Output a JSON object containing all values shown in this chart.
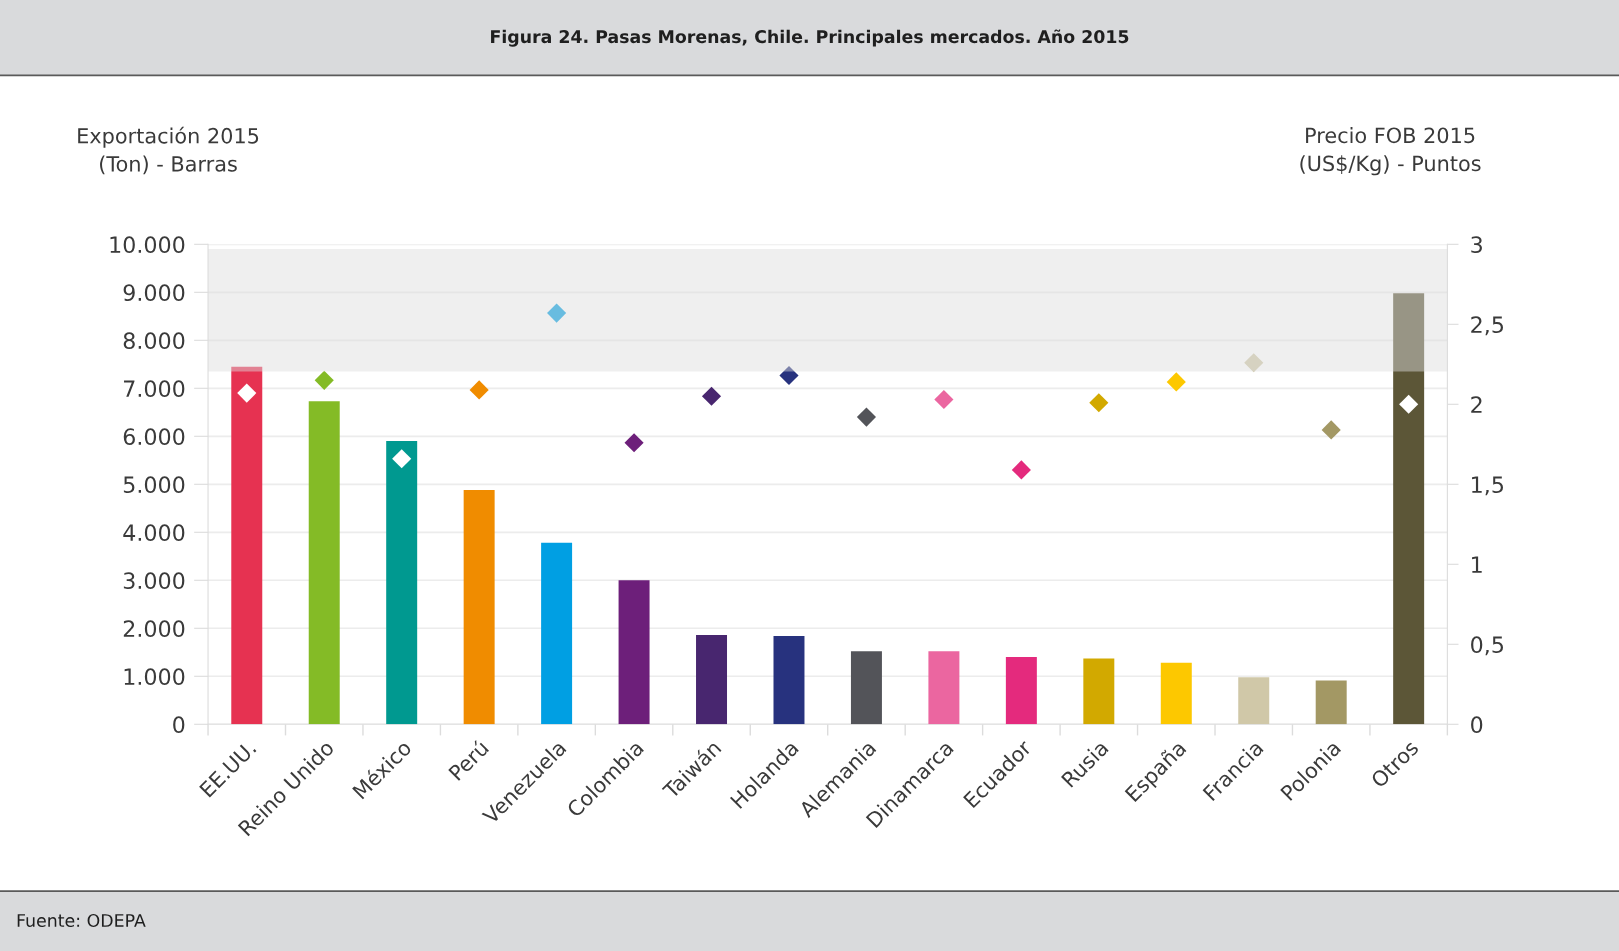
{
  "chart_data": {
    "type": "bar",
    "title": "Figura 24. Pasas Morenas, Chile. Principales mercados. Año 2015",
    "ylabel": "Exportación 2015\n(Ton) - Barras",
    "y2label": "Precio FOB 2015\n(US$/Kg) - Puntos",
    "annotations": [
      "Fuente: ODEPA"
    ],
    "categories": [
      "EE.UU.",
      "Reino Unido",
      "México",
      "Perú",
      "Venezuela",
      "Colombia",
      "Taiwán",
      "Holanda",
      "Alemania",
      "Dinamarca",
      "Ecuador",
      "Rusia",
      "España",
      "Francia",
      "Polonia",
      "Otros"
    ],
    "series": [
      {
        "colors": [
          "#e63251",
          "#84bb26",
          "#009990",
          "#f08c00",
          "#009fe3",
          "#6d1f7a",
          "#48266f",
          "#27327e",
          "#535459",
          "#eb66a0",
          "#e42a7d",
          "#d2a900",
          "#fdc800",
          "#d0c8a8",
          "#a39864",
          "#5c5637"
        ],
        "values": [
          7450,
          6730,
          5900,
          4880,
          3780,
          3000,
          1860,
          1840,
          1520,
          1520,
          1400,
          1370,
          1280,
          980,
          910,
          8980
        ]
      },
      {
        "type": "scatter",
        "axis": "y2",
        "colors": [
          "#ffffff",
          "#84bb26",
          "#ffffff",
          "#f08c00",
          "#009fe3",
          "#6d1f7a",
          "#48266f",
          "#27327e",
          "#535459",
          "#eb66a0",
          "#e42a7d",
          "#d2a900",
          "#fdc800",
          "#d0c8a8",
          "#a39864",
          "#ffffff"
        ],
        "values": [
          2.07,
          2.15,
          1.66,
          2.09,
          2.57,
          1.76,
          2.05,
          2.18,
          1.92,
          2.03,
          1.59,
          2.01,
          2.14,
          2.26,
          1.84,
          2.0
        ]
      }
    ],
    "marker": "diamond",
    "ylim": [
      0,
      10000
    ],
    "yticks": [
      0,
      {
        "value": 1000,
        "label": "1.000"
      },
      {
        "value": 2000,
        "label": "2.000"
      },
      {
        "value": 3000,
        "label": "3.000"
      },
      {
        "value": 4000,
        "label": "4.000"
      },
      {
        "value": 5000,
        "label": "5.000"
      },
      {
        "value": 6000,
        "label": "6.000"
      },
      {
        "value": 7000,
        "label": "7.000"
      },
      {
        "value": 8000,
        "label": "8.000"
      },
      {
        "value": 9000,
        "label": "9.000"
      },
      {
        "value": 10000,
        "label": "10.000"
      }
    ],
    "y2lim": [
      0,
      3
    ],
    "y2ticks": [
      0,
      {
        "value": 0.5,
        "label": "0,5"
      },
      1,
      {
        "value": 1.5,
        "label": "1,5"
      },
      2,
      {
        "value": 2.5,
        "label": "2,5"
      },
      3
    ],
    "bands": [
      {
        "axis": "y",
        "from": 7350,
        "to": 9900,
        "color": "#dddddd"
      }
    ],
    "grid": "y"
  }
}
